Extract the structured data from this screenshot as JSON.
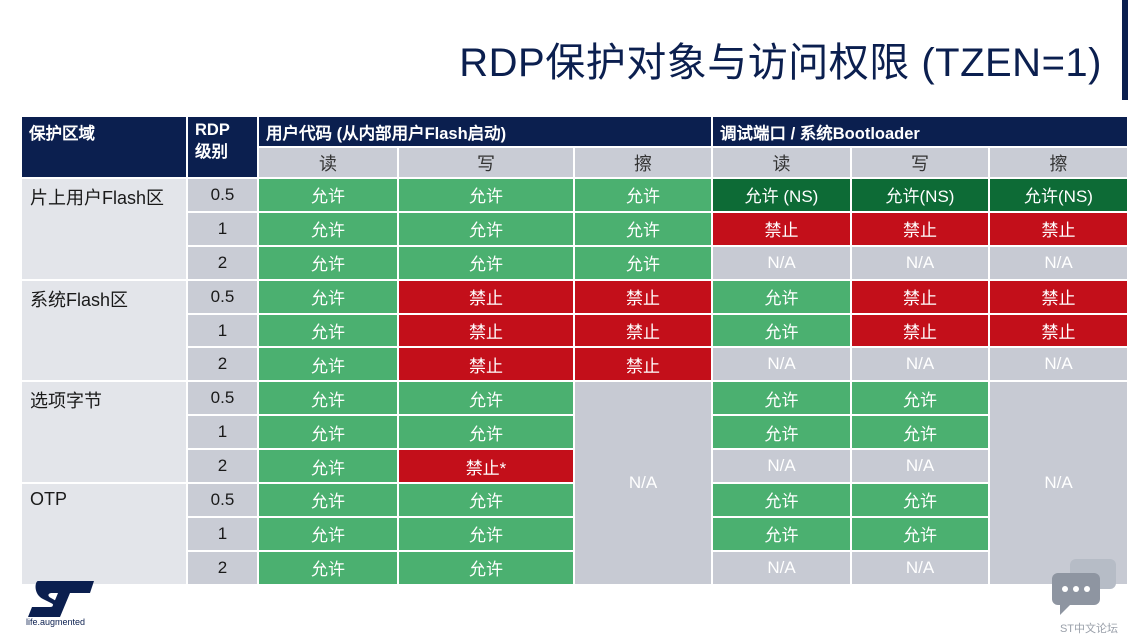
{
  "title": "RDP保护对象与访问权限 (TZEN=1)",
  "header": {
    "area": "保护区域",
    "rdp_line1": "RDP",
    "rdp_line2": "级别",
    "user_code": "用户代码   (从内部用户Flash启动)",
    "debug": "调试端口 / 系统Bootloader",
    "read": "读",
    "write": "写",
    "erase": "擦"
  },
  "areas": [
    "片上用户Flash区",
    "系统Flash区",
    "选项字节",
    "OTP"
  ],
  "levels": [
    "0.5",
    "1",
    "2",
    "0.5",
    "1",
    "2",
    "0.5",
    "1",
    "2",
    "0.5",
    "1",
    "2"
  ],
  "cells": {
    "r1": [
      "允许",
      "允许",
      "允许",
      "允许 (NS)",
      "允许(NS)",
      "允许(NS)"
    ],
    "r2": [
      "允许",
      "允许",
      "允许",
      "禁止",
      "禁止",
      "禁止"
    ],
    "r3": [
      "允许",
      "允许",
      "允许",
      "N/A",
      "N/A",
      "N/A"
    ],
    "r4": [
      "允许",
      "禁止",
      "禁止",
      "允许",
      "禁止",
      "禁止"
    ],
    "r5": [
      "允许",
      "禁止",
      "禁止",
      "允许",
      "禁止",
      "禁止"
    ],
    "r6": [
      "允许",
      "禁止",
      "禁止",
      "N/A",
      "N/A",
      "N/A"
    ],
    "r7": [
      "允许",
      "允许",
      "允许",
      "允许"
    ],
    "r8": [
      "允许",
      "允许",
      "允许",
      "允许"
    ],
    "r9": [
      "允许",
      "禁止*",
      "N/A",
      "N/A"
    ],
    "r10": [
      "允许",
      "允许",
      "允许",
      "允许"
    ],
    "r11": [
      "允许",
      "允许",
      "允许",
      "允许"
    ],
    "r12": [
      "允许",
      "允许",
      "N/A",
      "N/A"
    ],
    "merged_user_erase": "N/A",
    "merged_debug_erase": "N/A"
  },
  "footer": {
    "logo_tagline": "life.augmented",
    "forum": "ST中文论坛"
  },
  "colors": {
    "navy": "#0b1f4f",
    "allow": "#4bb070",
    "allow_ns": "#0d6b36",
    "deny": "#c30f1a",
    "na": "#c7cad3"
  }
}
